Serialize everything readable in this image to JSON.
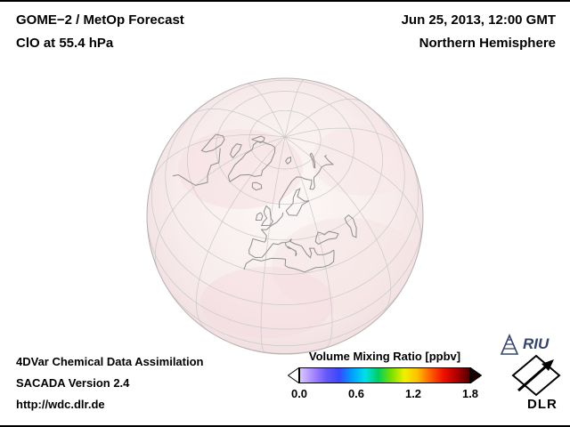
{
  "header": {
    "product": "GOME−2 / MetOp Forecast",
    "species_level": "ClO at 55.4 hPa",
    "datetime": "Jun 25, 2013, 12:00 GMT",
    "hemisphere": "Northern Hemisphere"
  },
  "footer": {
    "lines": [
      "4DVar Chemical Data Assimilation",
      "SACADA Version 2.4",
      "http://wdc.dlr.de"
    ]
  },
  "colorbar": {
    "title": "Volume Mixing Ratio [ppbv]",
    "ticks": [
      "0.0",
      "0.6",
      "1.2",
      "1.8"
    ],
    "min": 0.0,
    "max": 1.8,
    "stops": [
      "#d8c8ff",
      "#a888ff",
      "#6858f8",
      "#3848ff",
      "#00a0ff",
      "#00e0e8",
      "#00d060",
      "#78e000",
      "#f0f000",
      "#ffc000",
      "#ff6000",
      "#f01000",
      "#b00000",
      "#500000"
    ],
    "left_arrow_color": "#ffffff",
    "right_arrow_color": "#180000"
  },
  "logos": {
    "riu_label": "RIU",
    "dlr_label": "DLR"
  },
  "map_colors": {
    "graticule": "#c9c9c9",
    "coastline": "#8f8f8f",
    "field_tint_center": "#fcf7f6",
    "field_tint_edge": "#f1dde0"
  },
  "chart_data": {
    "type": "heatmap",
    "title": "GOME−2 / MetOp Forecast — ClO at 55.4 hPa",
    "datetime": "Jun 25, 2013, 12:00 GMT",
    "region": "Northern Hemisphere, orthographic globe view centered near 55°N 10°E",
    "variable": "ClO volume mixing ratio",
    "units": "ppbv",
    "scale_min": 0.0,
    "scale_max": 1.8,
    "scale_ticks": [
      0.0,
      0.6,
      1.2,
      1.8
    ],
    "legend_position": "bottom-center",
    "field_summary": "Near-zero ClO values over the entire visible hemisphere (uniform pale pink shading, no enhanced regions)"
  }
}
